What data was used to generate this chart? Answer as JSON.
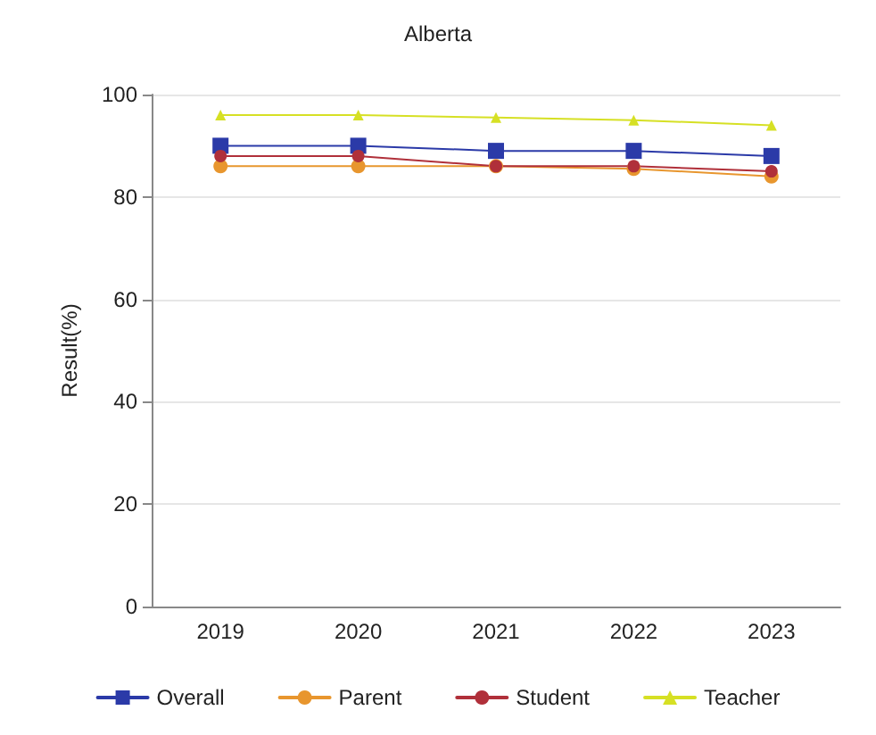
{
  "chart_data": {
    "type": "line",
    "title": "Alberta",
    "ylabel": "Result(%)",
    "categories": [
      "2019",
      "2020",
      "2021",
      "2022",
      "2023"
    ],
    "series": [
      {
        "name": "Overall",
        "color": "#2b3aa8",
        "marker": "square",
        "values": [
          90,
          90,
          89,
          89,
          88
        ]
      },
      {
        "name": "Parent",
        "color": "#e8962e",
        "marker": "circle",
        "values": [
          86,
          86,
          86,
          85.5,
          84
        ]
      },
      {
        "name": "Student",
        "color": "#b0303a",
        "marker": "circle",
        "values": [
          88,
          88,
          86,
          86,
          85
        ]
      },
      {
        "name": "Teacher",
        "color": "#d6e024",
        "marker": "triangle",
        "values": [
          96,
          96,
          95.5,
          95,
          94
        ]
      }
    ],
    "ylim": [
      0,
      100
    ],
    "yticks": [
      0,
      20,
      40,
      60,
      80,
      100
    ],
    "grid": "y",
    "legend": "bottom"
  }
}
